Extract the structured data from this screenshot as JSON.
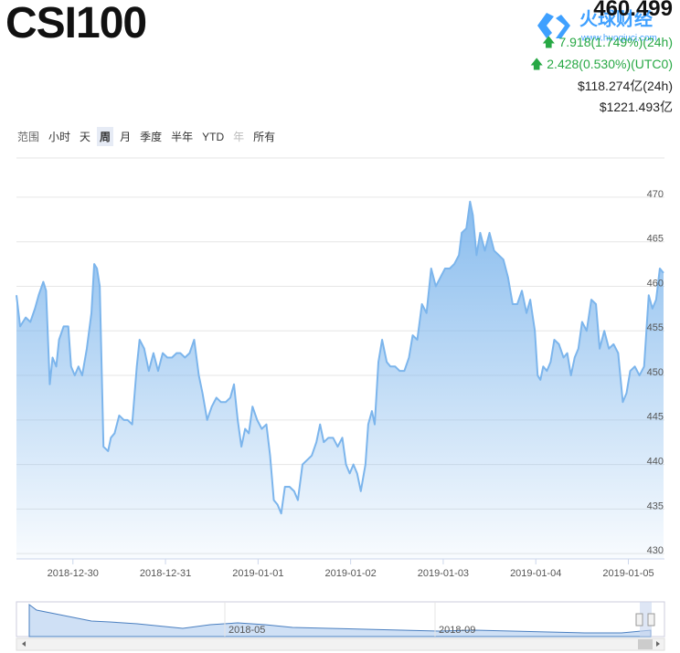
{
  "header": {
    "title": "CSI100",
    "price": "460.499",
    "change_24h": "7.918(1.749%)(24h)",
    "change_utc0": "2.428(0.530%)(UTC0)",
    "volume_24h": "$118.274亿(24h)",
    "market_cap": "$1221.493亿",
    "logo_text": "火球财经",
    "logo_url": "www.huoqiucj.com"
  },
  "range_selector": {
    "label": "范围",
    "buttons": [
      "小时",
      "天",
      "周",
      "月",
      "季度",
      "半年",
      "YTD",
      "年",
      "所有"
    ],
    "selected": "周",
    "disabled": "年"
  },
  "navigator": {
    "labels": [
      "2018-05",
      "2018-09"
    ]
  },
  "chart_data": {
    "type": "area",
    "color": "#7cb5ec",
    "grid": true,
    "x": [
      -0.61,
      -0.57,
      -0.51,
      -0.46,
      -0.41,
      -0.37,
      -0.32,
      -0.29,
      -0.25,
      -0.22,
      -0.18,
      -0.15,
      -0.1,
      -0.05,
      -0.02,
      0.02,
      0.06,
      0.1,
      0.15,
      0.2,
      0.23,
      0.26,
      0.29,
      0.33,
      0.38,
      0.41,
      0.45,
      0.5,
      0.55,
      0.59,
      0.64,
      0.69,
      0.72,
      0.77,
      0.82,
      0.87,
      0.92,
      0.97,
      1.02,
      1.07,
      1.12,
      1.16,
      1.21,
      1.26,
      1.31,
      1.36,
      1.4,
      1.45,
      1.5,
      1.55,
      1.6,
      1.65,
      1.7,
      1.74,
      1.78,
      1.82,
      1.86,
      1.9,
      1.94,
      1.99,
      2.04,
      2.09,
      2.13,
      2.17,
      2.21,
      2.25,
      2.29,
      2.34,
      2.39,
      2.43,
      2.48,
      2.53,
      2.58,
      2.63,
      2.67,
      2.71,
      2.76,
      2.81,
      2.86,
      2.91,
      2.95,
      2.99,
      3.03,
      3.07,
      3.11,
      3.16,
      3.19,
      3.23,
      3.26,
      3.3,
      3.34,
      3.39,
      3.43,
      3.48,
      3.53,
      3.58,
      3.63,
      3.67,
      3.72,
      3.77,
      3.82,
      3.87,
      3.92,
      3.97,
      4.02,
      4.07,
      4.12,
      4.17,
      4.2,
      4.25,
      4.29,
      4.32,
      4.36,
      4.4,
      4.45,
      4.5,
      4.55,
      4.6,
      4.65,
      4.7,
      4.75,
      4.8,
      4.85,
      4.9,
      4.94,
      4.99,
      5.02,
      5.05,
      5.08,
      5.12,
      5.16,
      5.2,
      5.25,
      5.3,
      5.34,
      5.38,
      5.42,
      5.46,
      5.5,
      5.55,
      5.6,
      5.65,
      5.69,
      5.74,
      5.79,
      5.84,
      5.89,
      5.94,
      5.98,
      6.02,
      6.07,
      6.12,
      6.17,
      6.22,
      6.26,
      6.3,
      6.34,
      6.38
    ],
    "values": [
      459,
      455.5,
      456.5,
      456,
      457.5,
      459,
      460.5,
      459.5,
      449,
      452,
      451,
      454,
      455.5,
      455.5,
      451,
      450,
      451,
      450,
      453,
      457,
      462.5,
      462,
      460,
      442,
      441.5,
      443,
      443.5,
      445.5,
      445,
      445,
      444.5,
      451,
      454,
      453,
      450.5,
      452.5,
      450.5,
      452.5,
      452,
      452,
      452.5,
      452.5,
      452,
      452.5,
      454,
      450,
      448,
      445,
      446.5,
      447.5,
      447,
      447,
      447.5,
      449,
      445,
      442,
      444,
      443.5,
      446.5,
      445,
      444,
      444.5,
      441,
      436,
      435.5,
      434.5,
      437.5,
      437.5,
      437,
      436,
      440,
      440.5,
      441,
      442.5,
      444.5,
      442.5,
      443,
      443,
      442,
      443,
      440,
      439,
      440,
      439,
      437,
      440,
      444.5,
      446,
      444.5,
      451.5,
      454,
      451.5,
      451,
      451,
      450.5,
      450.5,
      452,
      454.5,
      454,
      458,
      457,
      462,
      460,
      461,
      462,
      462,
      462.5,
      463.5,
      466,
      466.5,
      469.5,
      468,
      463.5,
      466,
      464,
      466,
      464,
      463.5,
      463,
      461,
      458,
      458,
      459.5,
      457,
      458.5,
      455,
      450,
      449.5,
      451,
      450.5,
      451.5,
      454,
      453.5,
      452,
      452.5,
      450,
      452,
      453,
      456,
      455,
      458.5,
      458,
      453,
      455,
      453,
      453.5,
      452.5,
      447,
      448,
      450.5,
      451,
      450,
      451,
      459,
      457.5,
      458.5,
      462,
      461.5
    ],
    "xlim": [
      -0.61,
      6.39
    ],
    "xticks": [
      {
        "value": 0,
        "label": "2018-12-30"
      },
      {
        "value": 1,
        "label": "2018-12-31"
      },
      {
        "value": 2,
        "label": "2019-01-01"
      },
      {
        "value": 3,
        "label": "2019-01-02"
      },
      {
        "value": 4,
        "label": "2019-01-03"
      },
      {
        "value": 5,
        "label": "2019-01-04"
      },
      {
        "value": 6,
        "label": "2019-01-05"
      }
    ],
    "ylim": [
      429.4,
      474.4
    ],
    "yticks": [
      430,
      435,
      440,
      445,
      450,
      455,
      460,
      465,
      470
    ]
  }
}
